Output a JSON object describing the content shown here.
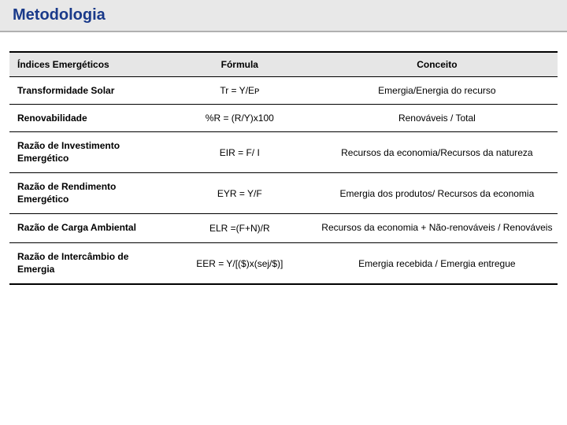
{
  "page": {
    "title": "Metodologia",
    "title_color": "#1a3a8a",
    "titlebar_bg": "#e8e8e8",
    "titlebar_border": "#b0b0b0"
  },
  "table": {
    "header_bg": "#e6e6e6",
    "border_color": "#000000",
    "columns": [
      "Índices Emergéticos",
      "Fórmula",
      "Conceito"
    ],
    "rows": [
      {
        "name": "Transformidade Solar",
        "formula": "Tr = Y/Eᴘ",
        "concept": "Emergia/Energia do recurso"
      },
      {
        "name": "Renovabilidade",
        "formula": "%R = (R/Y)x100",
        "concept": "Renováveis / Total"
      },
      {
        "name": "Razão de Investimento Emergético",
        "formula": "EIR = F/ I",
        "concept": "Recursos da economia/Recursos da natureza"
      },
      {
        "name": "Razão de Rendimento Emergético",
        "formula": "EYR = Y/F",
        "concept": "Emergia dos produtos/ Recursos da economia"
      },
      {
        "name": "Razão de Carga Ambiental",
        "formula": "ELR =(F+N)/R",
        "concept": "Recursos da economia + Não-renováveis / Renováveis"
      },
      {
        "name": "Razão de Intercâmbio de Emergia",
        "formula": "EER = Y/[($)x(sej/$)]",
        "concept": "Emergia recebida / Emergia entregue"
      }
    ]
  }
}
